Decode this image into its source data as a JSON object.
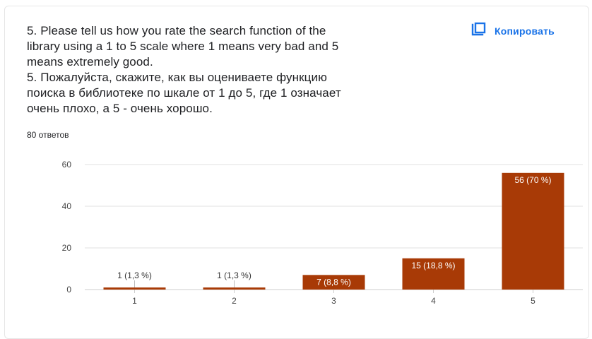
{
  "question": {
    "lines": [
      "5. Please tell us how you rate the search function of the",
      "library using a 1 to 5 scale where 1 means very bad and 5",
      "means extremely good.",
      "5. Пожалуйста, скажите, как вы оцениваете функцию",
      "поиска в библиотеке по шкале от 1 до 5, где 1 означает",
      "очень плохо, а 5 - очень хорошо."
    ],
    "answers_count": "80 ответов"
  },
  "copy_button": {
    "label": "Копировать",
    "icon": "copy-icon"
  },
  "colors": {
    "bar": "#a83a06",
    "grid": "#e0e0e0",
    "accent": "#1a73e8"
  },
  "chart_data": {
    "type": "bar",
    "categories": [
      "1",
      "2",
      "3",
      "4",
      "5"
    ],
    "values": [
      1,
      1,
      7,
      15,
      56
    ],
    "data_labels": [
      "1 (1,3 %)",
      "1 (1,3 %)",
      "7 (8,8 %)",
      "15 (18,8 %)",
      "56 (70 %)"
    ],
    "yticks": [
      "0",
      "20",
      "40",
      "60"
    ],
    "ytick_values": [
      0,
      20,
      40,
      60
    ],
    "ylim": [
      0,
      60
    ],
    "grid": true,
    "title": "",
    "xlabel": "",
    "ylabel": ""
  }
}
